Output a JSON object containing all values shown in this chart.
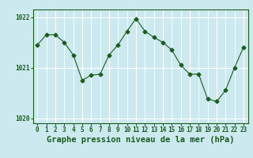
{
  "x": [
    0,
    1,
    2,
    3,
    4,
    5,
    6,
    7,
    8,
    9,
    10,
    11,
    12,
    13,
    14,
    15,
    16,
    17,
    18,
    19,
    20,
    21,
    22,
    23
  ],
  "y": [
    1021.45,
    1021.65,
    1021.65,
    1021.5,
    1021.25,
    1020.75,
    1020.85,
    1020.87,
    1021.25,
    1021.45,
    1021.72,
    1021.97,
    1021.72,
    1021.6,
    1021.5,
    1021.35,
    1021.05,
    1020.87,
    1020.87,
    1020.38,
    1020.33,
    1020.55,
    1021.0,
    1021.4
  ],
  "line_color": "#1a5c1a",
  "marker": "D",
  "marker_size": 2.5,
  "bg_color": "#cce9f0",
  "grid_color": "#ffffff",
  "xlabel": "Graphe pression niveau de la mer (hPa)",
  "ylim": [
    1019.9,
    1022.15
  ],
  "yticks": [
    1020,
    1021,
    1022
  ],
  "xlim": [
    -0.5,
    23.5
  ],
  "xticks": [
    0,
    1,
    2,
    3,
    4,
    5,
    6,
    7,
    8,
    9,
    10,
    11,
    12,
    13,
    14,
    15,
    16,
    17,
    18,
    19,
    20,
    21,
    22,
    23
  ],
  "tick_fontsize": 5.5,
  "label_fontsize": 7.5
}
